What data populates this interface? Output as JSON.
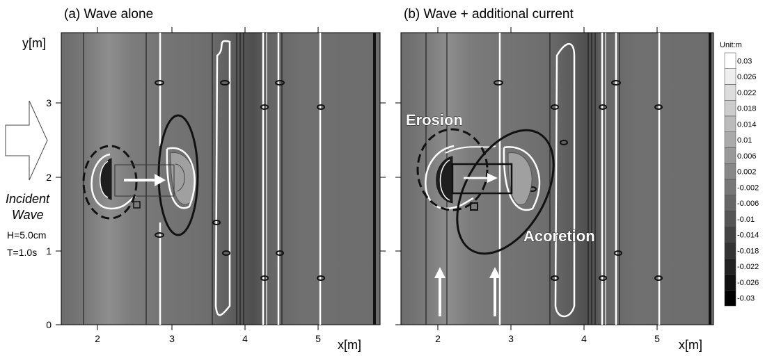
{
  "panels": [
    {
      "title": "(a) Wave alone",
      "ylabel": "y[m]",
      "xlabel": "",
      "annotations": []
    },
    {
      "title": "(b) Wave + additional current",
      "ylabel": "",
      "xlabel": "x[m]",
      "annotations": [
        "Erosion",
        "Acoretion"
      ]
    }
  ],
  "panel_a_xlabel": "x[m]",
  "incident": {
    "line1": "Incident",
    "line2": "Wave",
    "height": "H=5.0cm",
    "period": "T=1.0s"
  },
  "colorbar": {
    "title": "Unit:m",
    "levels": [
      "0.03",
      "0.026",
      "0.022",
      "0.018",
      "0.014",
      "0.01",
      "0.006",
      "0.002",
      "-0.002",
      "-0.006",
      "-0.01",
      "-0.014",
      "-0.018",
      "-0.022",
      "-0.026",
      "-0.03"
    ]
  },
  "colors": {
    "low": "#000000",
    "mid": "#6e6e6e",
    "high": "#ffffff",
    "field_base": "#6f6f6f",
    "contour_white": "#ffffff",
    "contour_black": "#111111"
  },
  "chart_data": [
    {
      "type": "heatmap",
      "title": "(a) Wave alone",
      "xlabel": "x[m]",
      "ylabel": "y[m]",
      "xlim": [
        1.5,
        5.85
      ],
      "ylim": [
        0,
        3.95
      ],
      "xticks": [
        "2",
        "3",
        "4",
        "5"
      ],
      "yticks": [
        "0",
        "1",
        "2",
        "3"
      ],
      "colorbar_range": [
        -0.03,
        0.03
      ],
      "unit": "m"
    },
    {
      "type": "heatmap",
      "title": "(b) Wave + additional current",
      "xlabel": "x[m]",
      "ylabel": "",
      "xlim": [
        1.5,
        5.85
      ],
      "ylim": [
        0,
        3.95
      ],
      "xticks": [
        "2",
        "3",
        "4",
        "5"
      ],
      "yticks": [
        "0",
        "1",
        "2",
        "3"
      ],
      "colorbar_range": [
        -0.03,
        0.03
      ],
      "unit": "m",
      "annotations": [
        "Erosion",
        "Acoretion"
      ]
    }
  ]
}
